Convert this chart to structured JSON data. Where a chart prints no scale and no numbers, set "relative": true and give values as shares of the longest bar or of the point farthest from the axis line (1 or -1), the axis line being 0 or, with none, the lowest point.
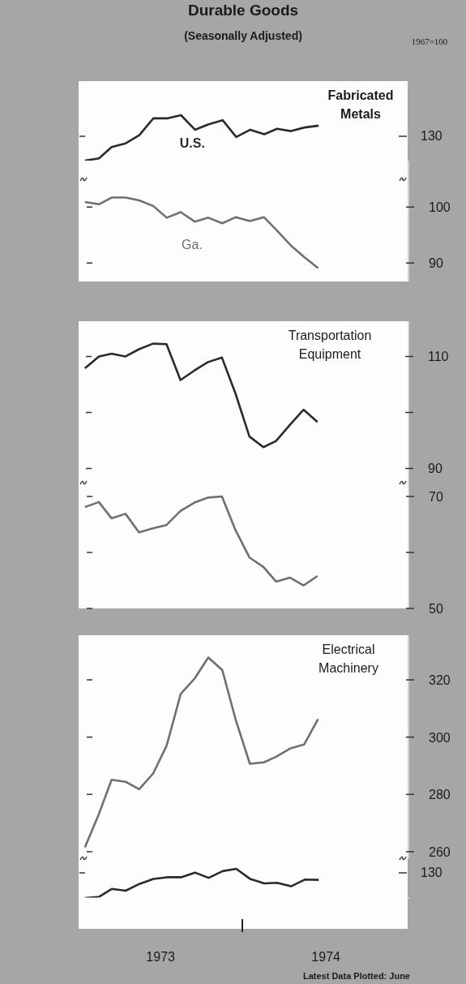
{
  "chart_data": [
    {
      "type": "line",
      "title": "Durable Goods",
      "subtitle": "(Seasonally Adjusted)",
      "annotations": [
        "Fabricated Metals",
        "1967=100",
        "130"
      ],
      "relative": true,
      "x": [
        "1973-01-15",
        "1973-02-15",
        "1973-03-15",
        "1973-04-15",
        "1973-05-15",
        "1973-06-15",
        "1973-07-15",
        "1973-08-15",
        "1973-09-15",
        "1973-10-15",
        "1973-11-15",
        "1973-12-15",
        "1974-01-15",
        "1974-02-15",
        "1974-03-15",
        "1974-04-15",
        "1974-05-15",
        "1974-06-15"
      ],
      "xlim": [
        "1973-01-01",
        "1975-01-01"
      ],
      "tick_labels": false,
      "series": [
        {
          "name": "U.S.",
          "color": "#2b2b2b",
          "values": [
            0,
            0.05,
            0.3,
            0.38,
            0.56,
            0.93,
            0.93,
            1,
            0.68,
            0.8,
            0.89,
            0.52,
            0.68,
            0.58,
            0.7,
            0.65,
            0.73,
            0.77
          ]
        }
      ]
    },
    {
      "type": "line",
      "x": [
        "1973-01-15",
        "1973-02-15",
        "1973-03-15",
        "1973-04-15",
        "1973-05-15",
        "1973-06-15",
        "1973-07-15",
        "1973-08-15",
        "1973-09-15",
        "1973-10-15",
        "1973-11-15",
        "1973-12-15",
        "1974-01-15",
        "1974-02-15",
        "1974-03-15",
        "1974-04-15",
        "1974-05-15",
        "1974-06-15"
      ],
      "xlim": [
        "1973-01-01",
        "1975-01-01"
      ],
      "ylim": [
        86.7,
        108.3
      ],
      "yticks": [
        100,
        90
      ],
      "tick_labels": "y",
      "series": [
        {
          "name": "Ga.",
          "color": "#707070",
          "values": [
            100.9,
            100.5,
            101.7,
            101.7,
            101.2,
            100.2,
            98.1,
            99.1,
            97.4,
            98.1,
            97.1,
            98.2,
            97.5,
            98.2,
            95.9,
            93.2,
            91.1,
            89.1
          ]
        }
      ]
    },
    {
      "type": "line",
      "annotations": [
        "Transportation Equipment"
      ],
      "x": [
        "1973-01-15",
        "1973-02-15",
        "1973-03-15",
        "1973-04-15",
        "1973-05-15",
        "1973-06-15",
        "1973-07-15",
        "1973-08-15",
        "1973-09-15",
        "1973-10-15",
        "1973-11-15",
        "1973-12-15",
        "1974-01-15",
        "1974-02-15",
        "1974-03-15",
        "1974-04-15",
        "1974-05-15",
        "1974-06-15"
      ],
      "xlim": [
        "1973-01-01",
        "1975-01-01"
      ],
      "ylim": [
        65,
        116.3
      ],
      "yticks": [
        110,
        {
          "value": 100,
          "label": null
        },
        90
      ],
      "y2lim": [
        50,
        101.3
      ],
      "y2ticks": [
        70,
        {
          "value": 60,
          "label": null
        },
        50
      ],
      "tick_labels": "y",
      "series": [
        {
          "color": "#2b2b2b",
          "values": [
            107.9,
            110,
            110.5,
            110,
            111.3,
            112.3,
            112.2,
            105.8,
            107.5,
            109.0,
            109.8,
            103.4,
            95.7,
            93.8,
            94.9,
            97.8,
            100.5,
            98.3
          ]
        },
        {
          "color": "#707070",
          "axis": "y2",
          "values": [
            68.1,
            69.0,
            66.1,
            66.9,
            63.6,
            64.3,
            64.9,
            67.4,
            68.9,
            69.8,
            70,
            64.0,
            59.1,
            57.4,
            54.8,
            55.5,
            54.1,
            55.8
          ]
        }
      ]
    },
    {
      "type": "line",
      "annotations": [
        "Electrical Machinery"
      ],
      "x": [
        "1973-01-15",
        "1973-02-15",
        "1973-03-15",
        "1973-04-15",
        "1973-05-15",
        "1973-06-15",
        "1973-07-15",
        "1973-08-15",
        "1973-09-15",
        "1973-10-15",
        "1973-11-15",
        "1973-12-15",
        "1974-01-15",
        "1974-02-15",
        "1974-03-15",
        "1974-04-15",
        "1974-05-15",
        "1974-06-15"
      ],
      "xlim": [
        "1973-01-01",
        "1975-01-01"
      ],
      "ylim": [
        257.7,
        335.6
      ],
      "yticks": [
        320,
        300,
        280,
        260
      ],
      "tick_labels": "y",
      "series": [
        {
          "color": "#707070",
          "values": [
            261.5,
            273.2,
            285.1,
            284.4,
            281.8,
            287.3,
            297.1,
            315.1,
            320.5,
            327.8,
            323.4,
            305.9,
            290.7,
            291.2,
            293.2,
            296.1,
            297.4,
            306.3
          ]
        }
      ]
    },
    {
      "type": "line",
      "annotations": [
        "130",
        "Latest Data Plotted: June"
      ],
      "relative": true,
      "x": [
        "1973-01-15",
        "1973-02-15",
        "1973-03-15",
        "1973-04-15",
        "1973-05-15",
        "1973-06-15",
        "1973-07-15",
        "1973-08-15",
        "1973-09-15",
        "1973-10-15",
        "1973-11-15",
        "1973-12-15",
        "1974-01-15",
        "1974-02-15",
        "1974-03-15",
        "1974-04-15",
        "1974-05-15",
        "1974-06-15"
      ],
      "xlim": [
        "1973-01-01",
        "1975-01-01"
      ],
      "xticks": [
        {
          "value": "1973-07-01",
          "label": "1973"
        },
        {
          "value": "1974-07-01",
          "label": "1974"
        }
      ],
      "tick_labels": "x",
      "series": [
        {
          "color": "#2b2b2b",
          "values": [
            0,
            0.04,
            0.31,
            0.25,
            0.48,
            0.65,
            0.71,
            0.71,
            0.87,
            0.69,
            0.92,
            1,
            0.65,
            0.5,
            0.52,
            0.4,
            0.63,
            0.62
          ]
        }
      ]
    }
  ]
}
